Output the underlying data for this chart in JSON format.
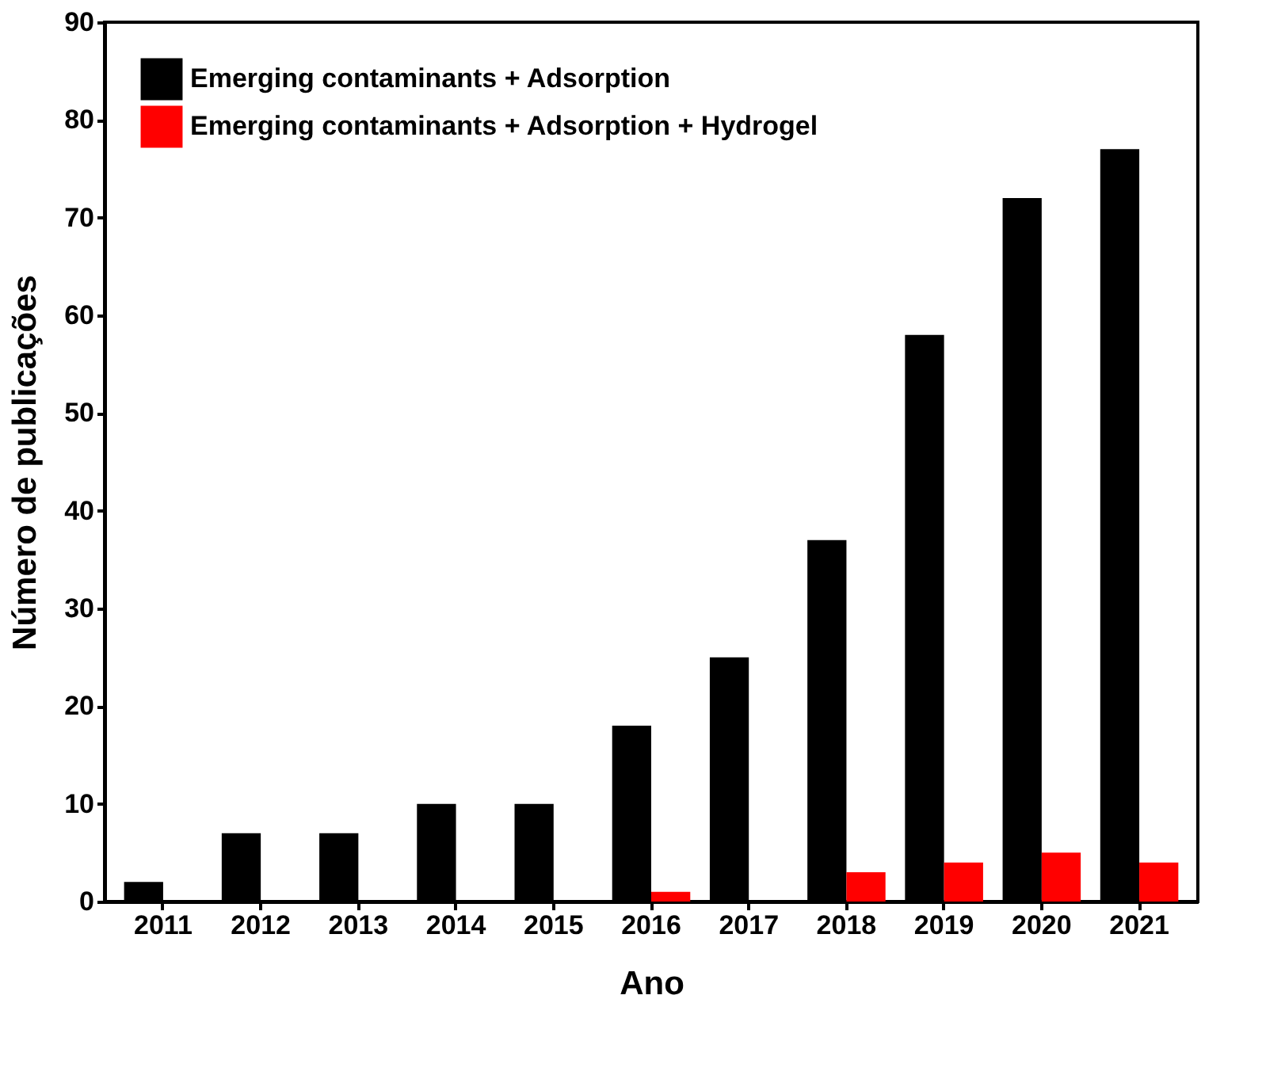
{
  "chart_data": {
    "type": "bar",
    "xlabel": "Ano",
    "ylabel": "Número de publicações",
    "categories": [
      "2011",
      "2012",
      "2013",
      "2014",
      "2015",
      "2016",
      "2017",
      "2018",
      "2019",
      "2020",
      "2021"
    ],
    "series": [
      {
        "name": "Emerging contaminants + Adsorption",
        "color": "#000000",
        "values": [
          2,
          7,
          7,
          10,
          10,
          18,
          25,
          37,
          58,
          72,
          77
        ]
      },
      {
        "name": "Emerging contaminants + Adsorption + Hydrogel",
        "color": "#ff0000",
        "values": [
          0,
          0,
          0,
          0,
          0,
          1,
          0,
          3,
          4,
          5,
          4
        ]
      }
    ],
    "ylim": [
      0,
      90
    ],
    "yticks": [
      0,
      10,
      20,
      30,
      40,
      50,
      60,
      70,
      80,
      90
    ],
    "grid": false,
    "legend": "top left"
  }
}
